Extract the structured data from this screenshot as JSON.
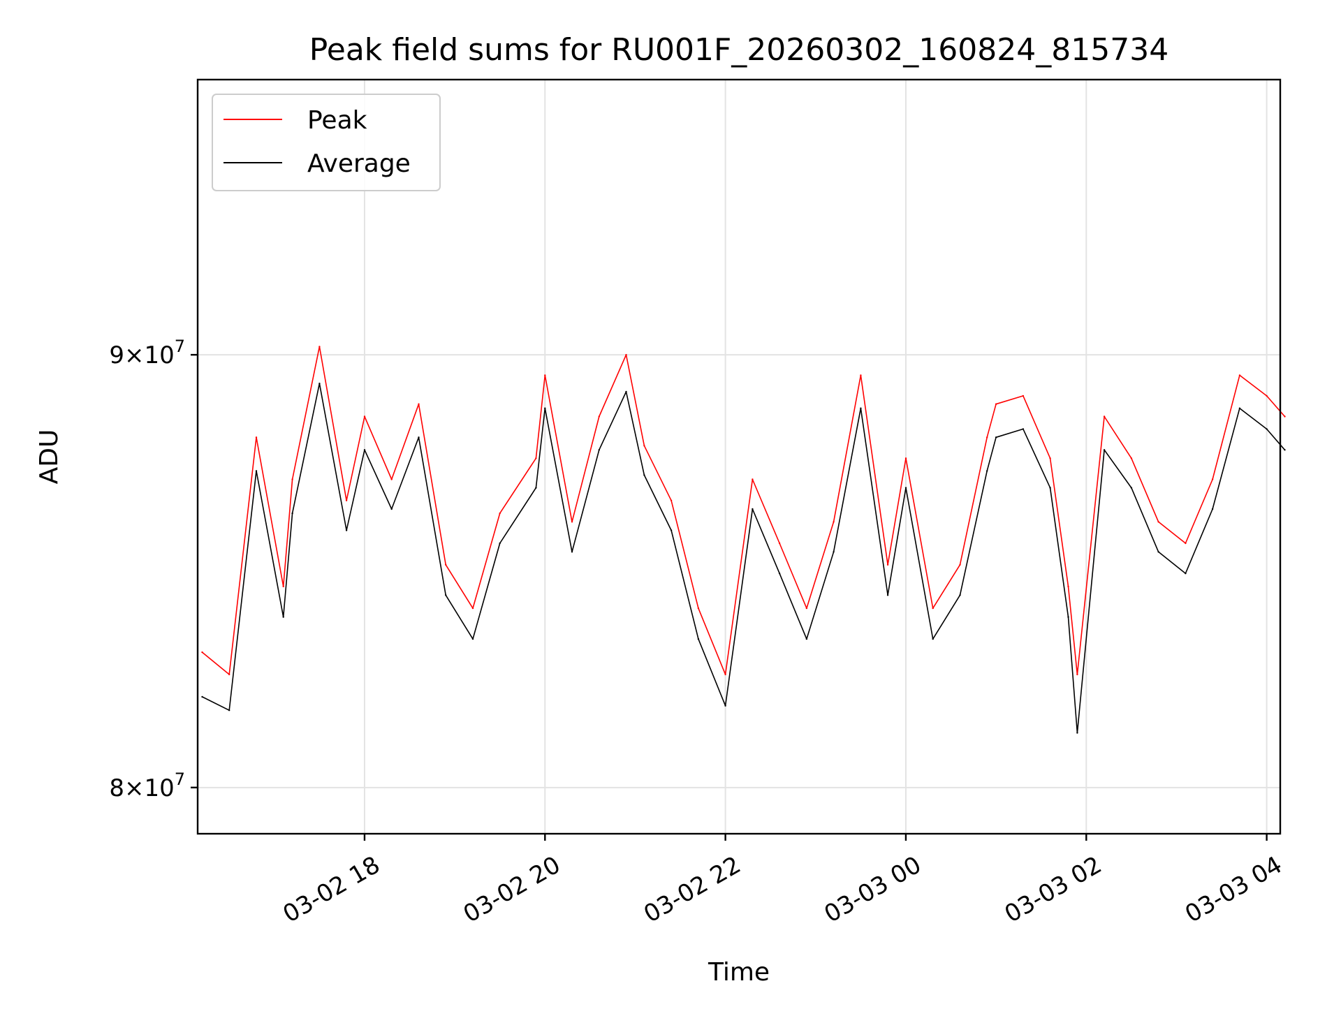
{
  "chart_data": {
    "type": "line",
    "title": "Peak field sums for RU001F_20260302_160824_815734",
    "xlabel": "Time",
    "ylabel": "ADU",
    "yscale": "log",
    "ylim": [
      79000000,
      97000000
    ],
    "xlim_hours": [
      16.15,
      28.15
    ],
    "grid": true,
    "legend": {
      "position": "top-left",
      "entries": [
        "Peak",
        "Average"
      ]
    },
    "x_ticks": [
      {
        "hours": 18,
        "label": "03-02 18"
      },
      {
        "hours": 20,
        "label": "03-02 20"
      },
      {
        "hours": 22,
        "label": "03-02 22"
      },
      {
        "hours": 24,
        "label": "03-03 00"
      },
      {
        "hours": 26,
        "label": "03-03 02"
      },
      {
        "hours": 28,
        "label": "03-03 04"
      }
    ],
    "y_ticks": [
      {
        "value": 80000000,
        "base": "8",
        "exp": "7"
      },
      {
        "value": 90000000,
        "base": "9",
        "exp": "7"
      }
    ],
    "x_unit": "hours since 2026-03-02 00:00",
    "series": [
      {
        "name": "Peak",
        "color": "#ff0000",
        "x": [
          16.2,
          16.5,
          16.8,
          17.1,
          17.2,
          17.5,
          17.8,
          18.0,
          18.3,
          18.6,
          18.9,
          19.2,
          19.5,
          19.9,
          20.0,
          20.3,
          20.6,
          20.9,
          21.1,
          21.4,
          21.7,
          22.0,
          22.3,
          22.6,
          22.9,
          23.2,
          23.5,
          23.8,
          24.0,
          24.3,
          24.6,
          24.9,
          25.0,
          25.3,
          25.6,
          25.8,
          25.9,
          26.2,
          26.5,
          26.8,
          27.1,
          27.4,
          27.7,
          28.0,
          28.2
        ],
        "values": [
          83000000,
          82500000,
          88000000,
          84500000,
          87000000,
          90200000,
          86500000,
          88500000,
          87000000,
          88800000,
          85000000,
          84000000,
          86200000,
          87500000,
          89500000,
          86000000,
          88500000,
          90000000,
          87800000,
          86500000,
          84000000,
          82500000,
          87000000,
          85500000,
          84000000,
          86000000,
          89500000,
          85000000,
          87500000,
          84000000,
          85000000,
          88000000,
          88800000,
          89000000,
          87500000,
          84500000,
          82500000,
          88500000,
          87500000,
          86000000,
          85500000,
          87000000,
          89500000,
          89000000,
          88500000
        ]
      },
      {
        "name": "Average",
        "color": "#000000",
        "x": [
          16.2,
          16.5,
          16.8,
          17.1,
          17.2,
          17.5,
          17.8,
          18.0,
          18.3,
          18.6,
          18.9,
          19.2,
          19.5,
          19.9,
          20.0,
          20.3,
          20.6,
          20.9,
          21.1,
          21.4,
          21.7,
          22.0,
          22.3,
          22.6,
          22.9,
          23.2,
          23.5,
          23.8,
          24.0,
          24.3,
          24.6,
          24.9,
          25.0,
          25.3,
          25.6,
          25.8,
          25.9,
          26.2,
          26.5,
          26.8,
          27.1,
          27.4,
          27.7,
          28.0,
          28.2
        ],
        "values": [
          82000000,
          81700000,
          87200000,
          83800000,
          86200000,
          89300000,
          85800000,
          87700000,
          86300000,
          88000000,
          84300000,
          83300000,
          85500000,
          86800000,
          88700000,
          85300000,
          87700000,
          89100000,
          87100000,
          85800000,
          83300000,
          81800000,
          86300000,
          84800000,
          83300000,
          85300000,
          88700000,
          84300000,
          86800000,
          83300000,
          84300000,
          87200000,
          88000000,
          88200000,
          86800000,
          83800000,
          81200000,
          87700000,
          86800000,
          85300000,
          84800000,
          86300000,
          88700000,
          88200000,
          87700000
        ]
      }
    ]
  }
}
